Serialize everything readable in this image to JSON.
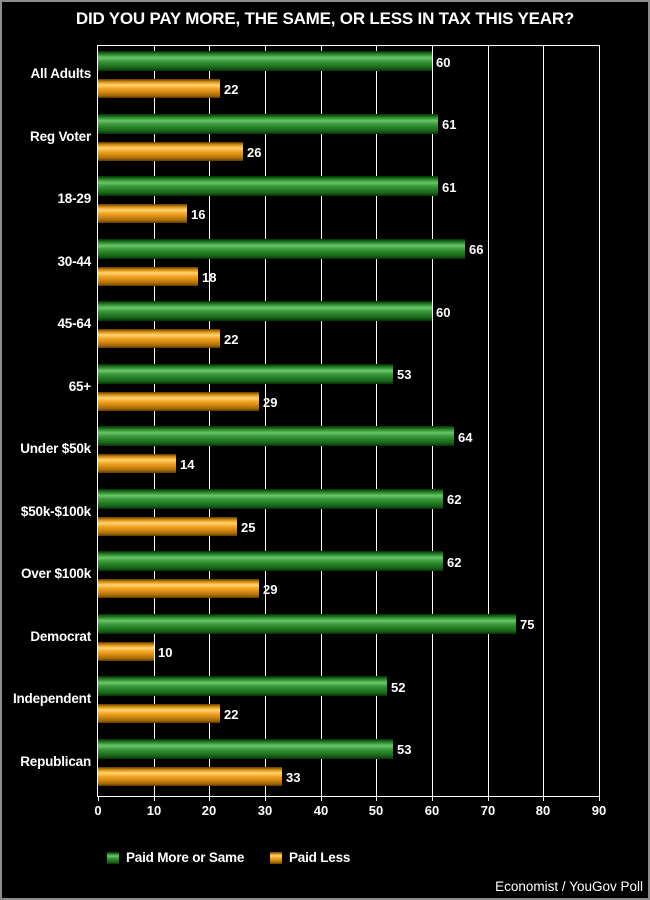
{
  "title": "DID YOU PAY MORE, THE SAME, OR LESS IN TAX THIS YEAR?",
  "footer": "Economist / YouGov Poll",
  "colors": {
    "background": "#000000",
    "frame_border": "#8c8c8c",
    "plot_border": "#ffffff",
    "gridline": "#ffffff",
    "text": "#ffffff",
    "green": "#2e8e2e",
    "orange": "#f2a422"
  },
  "legend": {
    "items": [
      {
        "label": "Paid More or Same",
        "color_key": "green"
      },
      {
        "label": "Paid Less",
        "color_key": "orange"
      }
    ]
  },
  "chart_data": {
    "type": "bar",
    "orientation": "horizontal",
    "title": "DID YOU PAY MORE, THE SAME, OR LESS IN TAX THIS YEAR?",
    "categories": [
      "All Adults",
      "Reg Voter",
      "18-29",
      "30-44",
      "45-64",
      "65+",
      "Under $50k",
      "$50k-$100k",
      "Over $100k",
      "Democrat",
      "Independent",
      "Republican"
    ],
    "series": [
      {
        "name": "Paid More or Same",
        "color_key": "green",
        "values": [
          60,
          61,
          61,
          66,
          60,
          53,
          64,
          62,
          62,
          75,
          52,
          53
        ]
      },
      {
        "name": "Paid Less",
        "color_key": "orange",
        "values": [
          22,
          26,
          16,
          18,
          22,
          29,
          14,
          25,
          29,
          10,
          22,
          33
        ]
      }
    ],
    "xlim": [
      0,
      90
    ],
    "xticks": [
      0,
      10,
      20,
      30,
      40,
      50,
      60,
      70,
      80,
      90
    ],
    "grid": true,
    "legend_position": "bottom-left",
    "source": "Economist / YouGov Poll"
  }
}
